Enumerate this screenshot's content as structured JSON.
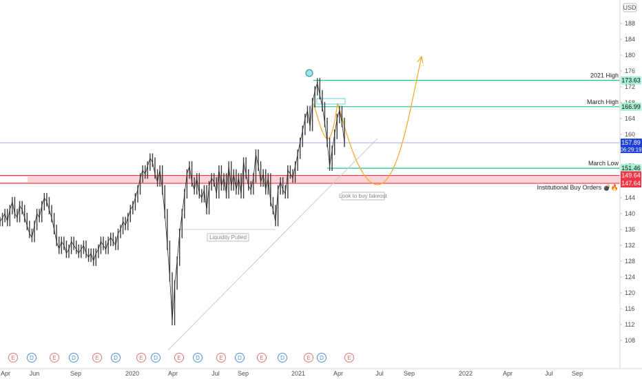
{
  "chart_data": {
    "type": "line",
    "currency": "USD",
    "y_ticks": [
      108,
      112,
      116,
      120,
      124,
      128,
      132,
      136,
      140,
      144,
      148,
      152,
      156,
      160,
      164,
      168,
      172,
      176,
      180,
      184,
      188
    ],
    "x_ticks": [
      "Apr",
      "Jun",
      "Sep",
      "2020",
      "Apr",
      "Jul",
      "Sep",
      "2021",
      "Apr",
      "Jul",
      "Sep",
      "2022",
      "Apr",
      "Jul",
      "Sep"
    ],
    "ylim": [
      106,
      190
    ],
    "series": [
      {
        "values": [
          138,
          139,
          140,
          138,
          141,
          143,
          140,
          139,
          142,
          141,
          139,
          137,
          135,
          134,
          137,
          140,
          139,
          142,
          144,
          143,
          141,
          139,
          136,
          133,
          131,
          133,
          132,
          130,
          131,
          133,
          132,
          131,
          130,
          131,
          132,
          130,
          129,
          130,
          128,
          130,
          131,
          133,
          132,
          131,
          133,
          134,
          133,
          132,
          135,
          136,
          138,
          137,
          139,
          141,
          142,
          144,
          146,
          149,
          151,
          150,
          152,
          154,
          153,
          150,
          148,
          151,
          146,
          140,
          132,
          124,
          113,
          122,
          128,
          135,
          140,
          145,
          150,
          152,
          148,
          146,
          149,
          145,
          144,
          146,
          141,
          147,
          149,
          148,
          145,
          151,
          147,
          149,
          145,
          152,
          147,
          150,
          146,
          149,
          145,
          153,
          150,
          147,
          146,
          149,
          155,
          152,
          148,
          150,
          146,
          149,
          143,
          141,
          138,
          146,
          148,
          146,
          145,
          151,
          150,
          149,
          152,
          155,
          158,
          161,
          164,
          166,
          162,
          168,
          171,
          173,
          170,
          167,
          163,
          158,
          152,
          156,
          160,
          164,
          166,
          163,
          158
        ]
      }
    ],
    "horizontal_levels": [
      {
        "name": "2021 High",
        "value": 173.63,
        "label": "173.63",
        "color": "#26c281"
      },
      {
        "name": "March High",
        "value": 166.99,
        "label": "166.99",
        "color": "#26c281"
      },
      {
        "name": "March Low",
        "value": 151.46,
        "label": "151.46",
        "color": "#26c281"
      },
      {
        "name": "",
        "value": 149.64,
        "label": "149.64",
        "color": "#f23645"
      },
      {
        "name": "Institutional Buy Orders 💣🔥",
        "value": 147.64,
        "label": "147.64",
        "color": "#f23645"
      }
    ],
    "current_price": {
      "value": 157.89,
      "label": "157.89",
      "countdown": "06:29:19",
      "color": "#1e3fd6"
    },
    "annotations": [
      {
        "text": "Look to buy fakeout"
      },
      {
        "text": "Liquidity Pulled"
      }
    ],
    "events": [
      "E",
      "D",
      "E",
      "D",
      "E",
      "D",
      "E",
      "D",
      "E",
      "D",
      "E",
      "D",
      "E",
      "D",
      "E",
      "D",
      "E"
    ]
  }
}
